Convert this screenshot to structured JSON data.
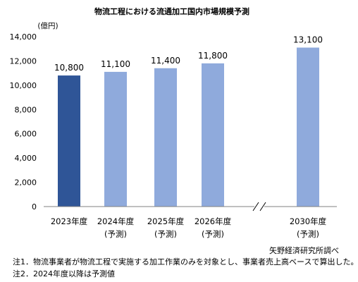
{
  "chart_data": {
    "type": "bar",
    "title": "物流工程における流通加工国内市場規模予測",
    "unit_label": "(億円)",
    "ylim": [
      0,
      14000
    ],
    "yticks": [
      "0",
      "2,000",
      "4,000",
      "6,000",
      "8,000",
      "10,000",
      "12,000",
      "14,000"
    ],
    "categories": [
      {
        "line1": "2023年度",
        "line2": ""
      },
      {
        "line1": "2024年度",
        "line2": "(予測)"
      },
      {
        "line1": "2025年度",
        "line2": "(予測)"
      },
      {
        "line1": "2026年度",
        "line2": "(予測)"
      },
      {
        "line1": "2030年度",
        "line2": "(予測)"
      }
    ],
    "values": [
      10800,
      11100,
      11400,
      11800,
      13100
    ],
    "value_labels": [
      "10,800",
      "11,100",
      "11,400",
      "11,800",
      "13,100"
    ],
    "axis_break": "//",
    "colors": {
      "actual": "#2f5597",
      "forecast": "#8faadc",
      "axis": "#808080"
    }
  },
  "source": "矢野経済研究所調べ",
  "notes": [
    "注1．物流事業者が物流工程で実施する加工作業のみを対象とし、事業者売上高ベースで算出した。",
    "注2．2024年度以降は予測値"
  ]
}
